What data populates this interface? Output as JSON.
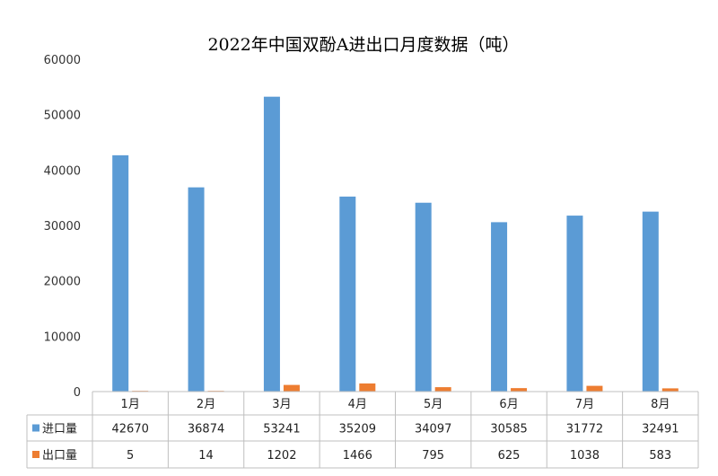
{
  "chart_data": {
    "type": "bar",
    "title": "2022年中国双酚A进出口月度数据（吨）",
    "categories": [
      "1月",
      "2月",
      "3月",
      "4月",
      "5月",
      "6月",
      "7月",
      "8月"
    ],
    "series": [
      {
        "name": "进口量",
        "color": "#5B9BD5",
        "values": [
          42670,
          36874,
          53241,
          35209,
          34097,
          30585,
          31772,
          32491
        ]
      },
      {
        "name": "出口量",
        "color": "#ED7D31",
        "values": [
          5,
          14,
          1202,
          1466,
          795,
          625,
          1038,
          583
        ]
      }
    ],
    "yticks": [
      "0",
      "10000",
      "20000",
      "30000",
      "40000",
      "50000",
      "60000"
    ],
    "ylim": [
      0,
      60000
    ],
    "grid": false,
    "legend": "data-table"
  }
}
